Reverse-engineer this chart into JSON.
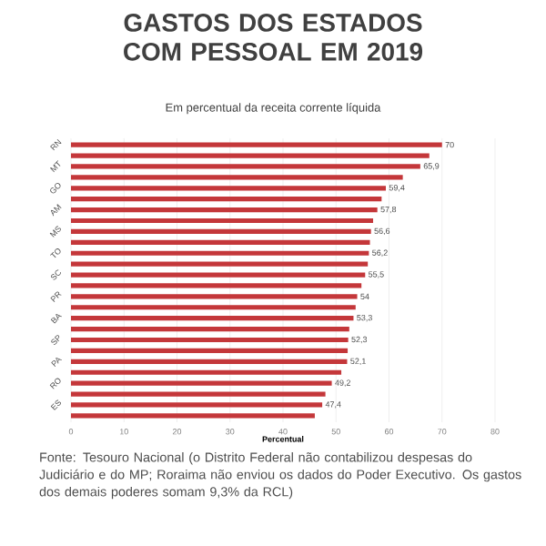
{
  "chart_data": {
    "type": "bar",
    "orientation": "horizontal",
    "title": "GASTOS DOS ESTADOS COM PESSOAL EM 2019",
    "subtitle": "Em percentual da receita corrente líquida",
    "xlabel": "Percentual",
    "categories": [
      "RN",
      null,
      "MT",
      null,
      "GO",
      null,
      "AM",
      null,
      "MS",
      null,
      "TO",
      null,
      "SC",
      null,
      "PR",
      null,
      "BA",
      null,
      "SP",
      null,
      "PA",
      null,
      "RO",
      null,
      "ES",
      null
    ],
    "values": [
      70,
      67.6,
      65.9,
      62.6,
      59.4,
      58.6,
      57.8,
      57.0,
      56.6,
      56.4,
      56.2,
      56.0,
      55.5,
      54.8,
      54,
      53.7,
      53.3,
      52.5,
      52.3,
      52.2,
      52.1,
      51.0,
      49.2,
      48.0,
      47.4,
      46.0
    ],
    "value_labels": [
      "70",
      null,
      "65,9",
      null,
      "59,4",
      null,
      "57,8",
      null,
      "56,6",
      null,
      "56,2",
      null,
      "55,5",
      null,
      "54",
      null,
      "53,3",
      null,
      "52,3",
      null,
      "52,1",
      null,
      "49,2",
      null,
      "47,4",
      null
    ],
    "color": "#c4373a",
    "xlim": [
      0,
      80
    ],
    "xticks": [
      0,
      10,
      20,
      30,
      40,
      50,
      60,
      70,
      80
    ],
    "grid": "x",
    "annotations": [
      "Fonte: Tesouro Nacional (o Distrito Federal não contabilizou despesas do Judiciário e do MP; Roraima não enviou os dados do Poder Executivo. Os gastos dos demais poderes somam 9,3% da RCL)"
    ]
  }
}
